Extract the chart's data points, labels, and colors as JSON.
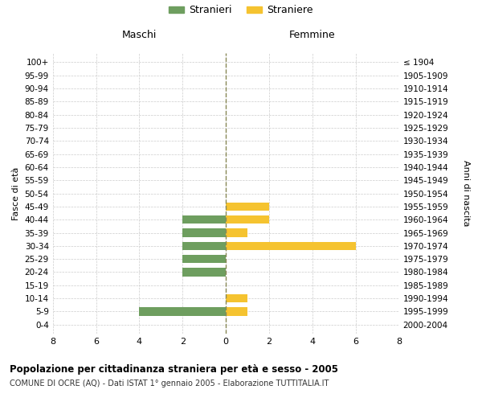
{
  "age_groups": [
    "0-4",
    "5-9",
    "10-14",
    "15-19",
    "20-24",
    "25-29",
    "30-34",
    "35-39",
    "40-44",
    "45-49",
    "50-54",
    "55-59",
    "60-64",
    "65-69",
    "70-74",
    "75-79",
    "80-84",
    "85-89",
    "90-94",
    "95-99",
    "100+"
  ],
  "birth_years": [
    "2000-2004",
    "1995-1999",
    "1990-1994",
    "1985-1989",
    "1980-1984",
    "1975-1979",
    "1970-1974",
    "1965-1969",
    "1960-1964",
    "1955-1959",
    "1950-1954",
    "1945-1949",
    "1940-1944",
    "1935-1939",
    "1930-1934",
    "1925-1929",
    "1920-1924",
    "1915-1919",
    "1910-1914",
    "1905-1909",
    "≤ 1904"
  ],
  "males": [
    0,
    4,
    0,
    0,
    2,
    2,
    2,
    2,
    2,
    0,
    0,
    0,
    0,
    0,
    0,
    0,
    0,
    0,
    0,
    0,
    0
  ],
  "females": [
    0,
    1,
    1,
    0,
    0,
    0,
    6,
    1,
    2,
    2,
    0,
    0,
    0,
    0,
    0,
    0,
    0,
    0,
    0,
    0,
    0
  ],
  "male_color": "#6e9e5f",
  "female_color": "#f5c330",
  "background_color": "#ffffff",
  "grid_color": "#cccccc",
  "title": "Popolazione per cittadinanza straniera per età e sesso - 2005",
  "subtitle": "COMUNE DI OCRE (AQ) - Dati ISTAT 1° gennaio 2005 - Elaborazione TUTTITALIA.IT",
  "xlabel_left": "Maschi",
  "xlabel_right": "Femmine",
  "ylabel_left": "Fasce di età",
  "ylabel_right": "Anni di nascita",
  "legend_male": "Stranieri",
  "legend_female": "Straniere",
  "xlim": 8
}
